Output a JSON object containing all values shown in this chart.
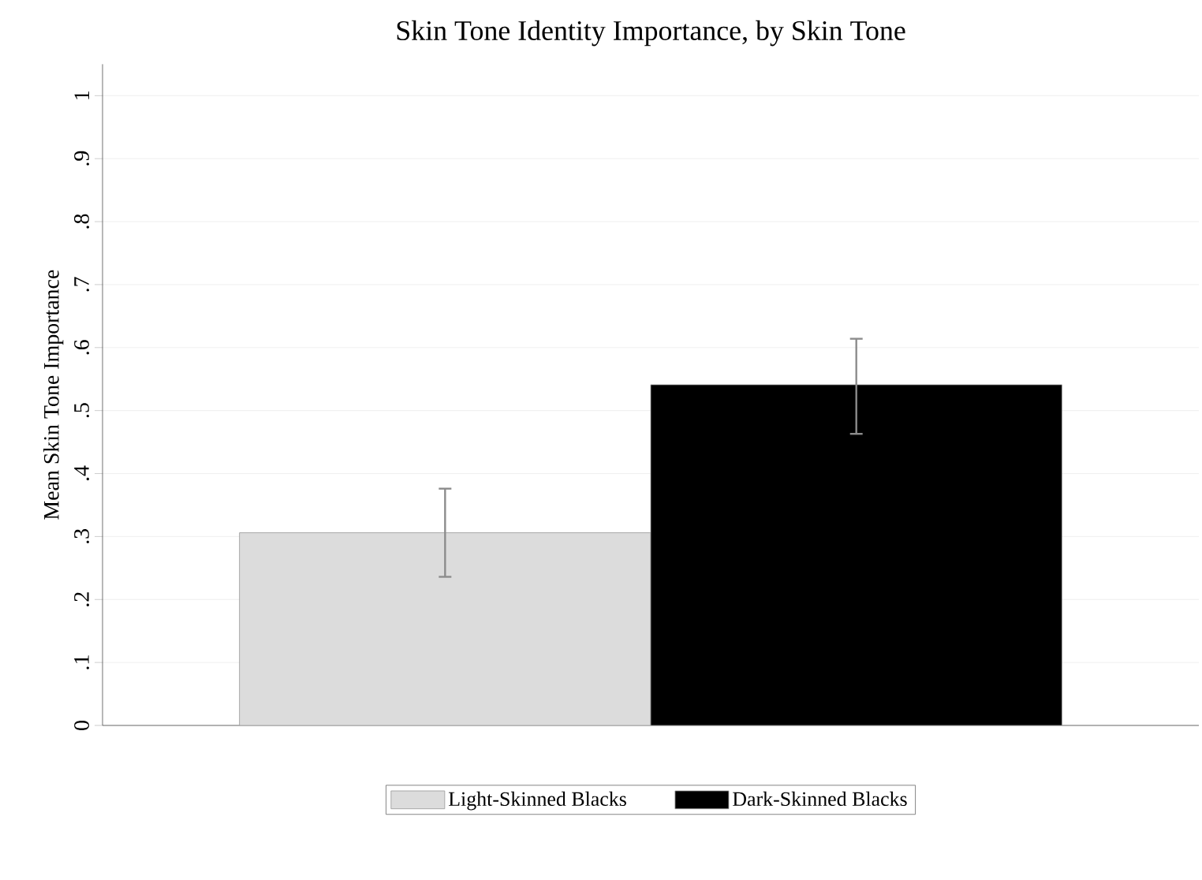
{
  "chart_data": {
    "type": "bar",
    "title": "Skin Tone Identity Importance, by Skin Tone",
    "ylabel": "Mean Skin Tone Importance",
    "categories": [
      null,
      null
    ],
    "series": [
      {
        "name": "Light-Skinned Blacks",
        "color": "#dcdcdc",
        "values": [
          0.306,
          null
        ],
        "errors": [
          [
            0.236,
            0.376
          ],
          null
        ]
      },
      {
        "name": "Dark-Skinned Blacks",
        "color": "#000000",
        "values": [
          null,
          0.541
        ],
        "errors": [
          null,
          [
            0.463,
            0.614
          ]
        ]
      }
    ],
    "ylim": [
      0,
      1.05
    ],
    "yticks": [
      0,
      {
        "value": 0.1,
        "label": ".1"
      },
      {
        "value": 0.2,
        "label": ".2"
      },
      {
        "value": 0.3,
        "label": ".3"
      },
      {
        "value": 0.4,
        "label": ".4"
      },
      {
        "value": 0.5,
        "label": ".5"
      },
      {
        "value": 0.6,
        "label": ".6"
      },
      {
        "value": 0.7,
        "label": ".7"
      },
      {
        "value": 0.8,
        "label": ".8"
      },
      {
        "value": 0.9,
        "label": ".9"
      },
      1
    ],
    "grid": "y",
    "legend": "bottom"
  }
}
